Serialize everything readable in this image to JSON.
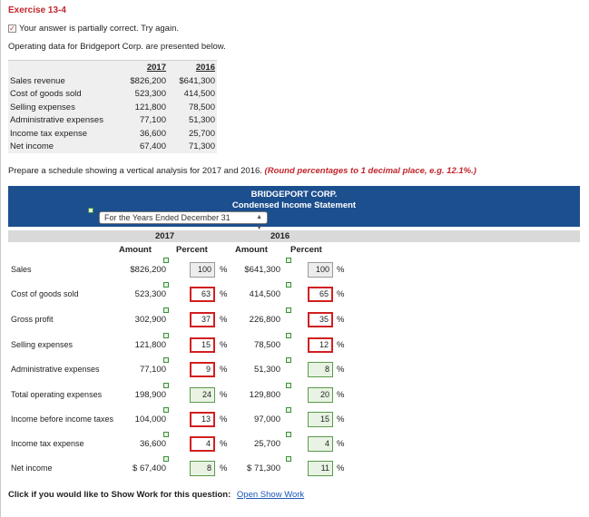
{
  "exercise_title": "Exercise 13-4",
  "status_message": "Your answer is partially correct.  Try again.",
  "intro": "Operating data for Bridgeport Corp. are presented below.",
  "operating_data": {
    "year1": "2017",
    "year2": "2016",
    "rows": [
      {
        "label": "Sales revenue",
        "v2017": "$826,200",
        "v2016": "$641,300"
      },
      {
        "label": "Cost of goods sold",
        "v2017": "523,300",
        "v2016": "414,500"
      },
      {
        "label": "Selling expenses",
        "v2017": "121,800",
        "v2016": "78,500"
      },
      {
        "label": "Administrative expenses",
        "v2017": "77,100",
        "v2016": "51,300"
      },
      {
        "label": "Income tax expense",
        "v2017": "36,600",
        "v2016": "25,700"
      },
      {
        "label": "Net income",
        "v2017": "67,400",
        "v2016": "71,300"
      }
    ]
  },
  "instruction_text": "Prepare a schedule showing a vertical analysis for 2017 and 2016.",
  "instruction_round": "(Round percentages to 1 decimal place, e.g. 12.1%.)",
  "schedule": {
    "company": "BRIDGEPORT CORP.",
    "statement": "Condensed Income Statement",
    "period_select": "For the Years Ended December 31",
    "year1": "2017",
    "year2": "2016",
    "col_amount": "Amount",
    "col_percent": "Percent",
    "pct_symbol": "%",
    "rows": [
      {
        "label": "Sales",
        "amt2017": "$826,200",
        "pct2017": "100",
        "state2017": "neutral",
        "amt2016": "$641,300",
        "pct2016": "100",
        "state2016": "neutral"
      },
      {
        "label": "Cost of goods sold",
        "amt2017": "523,300",
        "pct2017": "63",
        "state2017": "wrong",
        "amt2016": "414,500",
        "pct2016": "65",
        "state2016": "wrong"
      },
      {
        "label": "Gross profit",
        "amt2017": "302,900",
        "pct2017": "37",
        "state2017": "wrong",
        "amt2016": "226,800",
        "pct2016": "35",
        "state2016": "wrong"
      },
      {
        "label": "Selling expenses",
        "amt2017": "121,800",
        "pct2017": "15",
        "state2017": "wrong",
        "amt2016": "78,500",
        "pct2016": "12",
        "state2016": "wrong"
      },
      {
        "label": "Administrative expenses",
        "amt2017": "77,100",
        "pct2017": "9",
        "state2017": "wrong",
        "amt2016": "51,300",
        "pct2016": "8",
        "state2016": "correct"
      },
      {
        "label": "Total operating expenses",
        "amt2017": "198,900",
        "pct2017": "24",
        "state2017": "correct",
        "amt2016": "129,800",
        "pct2016": "20",
        "state2016": "correct"
      },
      {
        "label": "Income before income taxes",
        "amt2017": "104,000",
        "pct2017": "13",
        "state2017": "wrong",
        "amt2016": "97,000",
        "pct2016": "15",
        "state2016": "correct"
      },
      {
        "label": "Income tax expense",
        "amt2017": "36,600",
        "pct2017": "4",
        "state2017": "wrong",
        "amt2016": "25,700",
        "pct2016": "4",
        "state2016": "correct"
      },
      {
        "label": "Net income",
        "amt2017": "$ 67,400",
        "pct2017": "8",
        "state2017": "correct",
        "amt2016": "$ 71,300",
        "pct2016": "11",
        "state2016": "correct"
      }
    ]
  },
  "footer_text": "Click if you would like to Show Work for this question:",
  "footer_link": "Open Show Work",
  "colors": {
    "title": "#c0262d",
    "header_bg": "#1c4f8e",
    "wrong": "#d21f1f",
    "correct": "#5a9a4a",
    "link": "#1a56b8"
  }
}
